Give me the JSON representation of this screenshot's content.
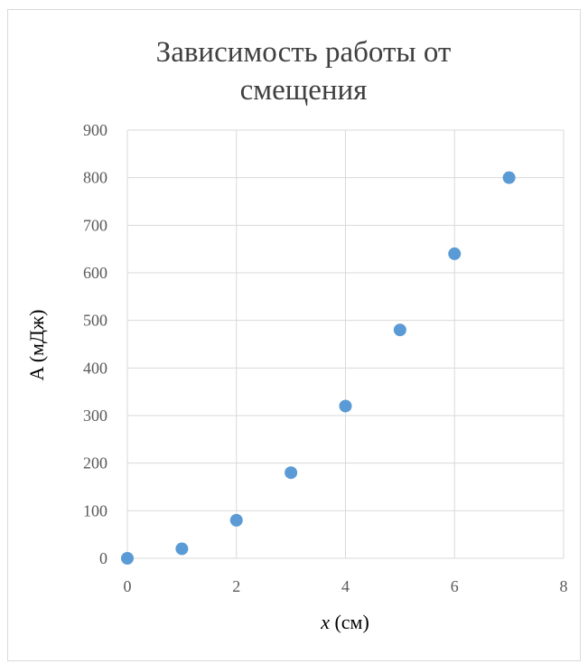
{
  "chart_data": {
    "type": "scatter",
    "title_lines": [
      "Зависимость работы от",
      "смещения"
    ],
    "xlabel_var": "x",
    "xlabel_unit": " (см)",
    "ylabel": "A (мДж)",
    "xlim": [
      0,
      8
    ],
    "ylim": [
      0,
      900
    ],
    "xticks": [
      0,
      2,
      4,
      6,
      8
    ],
    "yticks": [
      0,
      100,
      200,
      300,
      400,
      500,
      600,
      700,
      800,
      900
    ],
    "grid": true,
    "legend": "none",
    "marker_color": "#5b9bd5",
    "series": [
      {
        "x": [
          0,
          1,
          2,
          3,
          4,
          5,
          6,
          7
        ],
        "y": [
          0,
          20,
          80,
          180,
          320,
          480,
          640,
          800
        ]
      }
    ]
  }
}
